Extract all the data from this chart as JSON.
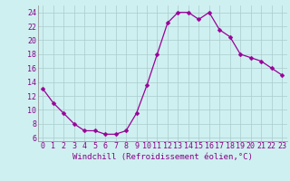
{
  "x": [
    0,
    1,
    2,
    3,
    4,
    5,
    6,
    7,
    8,
    9,
    10,
    11,
    12,
    13,
    14,
    15,
    16,
    17,
    18,
    19,
    20,
    21,
    22,
    23
  ],
  "y": [
    13,
    11,
    9.5,
    8,
    7,
    7,
    6.5,
    6.5,
    7,
    9.5,
    13.5,
    18,
    22.5,
    24,
    24,
    23,
    24,
    21.5,
    20.5,
    18,
    17.5,
    17,
    16,
    15
  ],
  "line_color": "#990099",
  "marker": "D",
  "marker_size": 2.5,
  "bg_color": "#cff0f0",
  "grid_color": "#aacccc",
  "xlabel": "Windchill (Refroidissement éolien,°C)",
  "xlabel_color": "#880088",
  "xlabel_fontsize": 6.5,
  "tick_color": "#880088",
  "tick_fontsize": 6,
  "xlim": [
    -0.5,
    23.5
  ],
  "ylim": [
    5.5,
    25
  ],
  "yticks": [
    6,
    8,
    10,
    12,
    14,
    16,
    18,
    20,
    22,
    24
  ],
  "xticks": [
    0,
    1,
    2,
    3,
    4,
    5,
    6,
    7,
    8,
    9,
    10,
    11,
    12,
    13,
    14,
    15,
    16,
    17,
    18,
    19,
    20,
    21,
    22,
    23
  ]
}
